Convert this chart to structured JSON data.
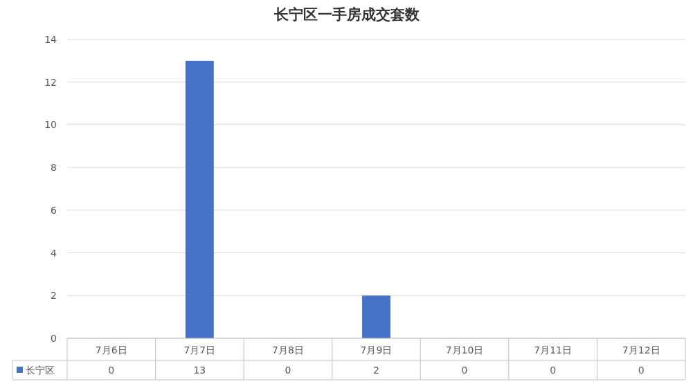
{
  "chart_data": {
    "type": "bar",
    "title": "长宁区一手房成交套数",
    "categories": [
      "7月6日",
      "7月7日",
      "7月8日",
      "7月9日",
      "7月10日",
      "7月11日",
      "7月12日"
    ],
    "series": [
      {
        "name": "长宁区",
        "color": "#4472c4",
        "values": [
          0,
          13,
          0,
          2,
          0,
          0,
          0
        ]
      }
    ],
    "ylim": [
      0,
      14
    ],
    "yticks": [
      0,
      2,
      4,
      6,
      8,
      10,
      12,
      14
    ],
    "grid": "y",
    "data_labels": true,
    "legend": "bottom"
  }
}
